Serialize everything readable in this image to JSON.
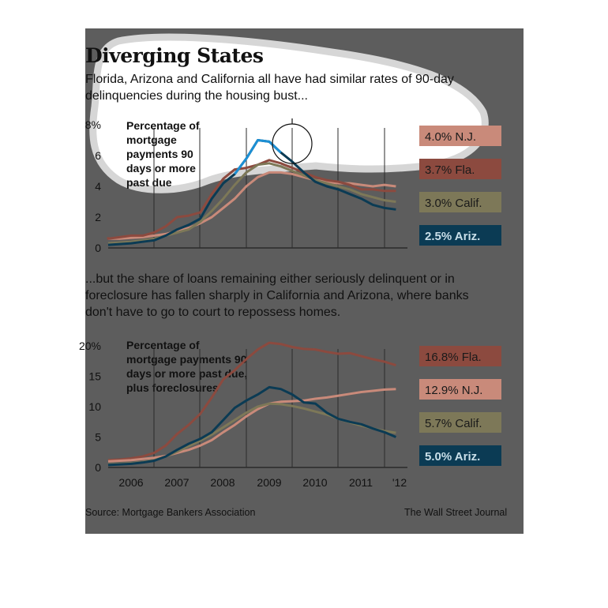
{
  "title": "Diverging States",
  "intro_top": "Florida, Arizona and California all have had similar rates of 90-day delinquencies during the housing bust...",
  "intro_bottom": "...but the share of loans remaining either seriously delinquent or in foreclosure has fallen sharply in California and Arizona, where banks don't have to go to court to repossess homes.",
  "source": "Source: Mortgage Bankers Association",
  "credit": "The Wall Street Journal",
  "colors": {
    "panel": "#5d5d5d",
    "highlight": "#ffffff",
    "axis": "#2b2b2b",
    "nj": "#c98a7a",
    "fla": "#8c4a3f",
    "calif": "#7d7858",
    "ariz": "#0b3b54",
    "ariz_peak": "#1c8fd4"
  },
  "chart_data": [
    {
      "type": "line",
      "label": "Percentage of mortgage payments 90 days or more past due",
      "ylim": [
        0,
        8
      ],
      "yticks": [
        "0",
        "2",
        "4",
        "6",
        "8%"
      ],
      "xlim": [
        2006,
        2012.25
      ],
      "grid": false,
      "legend_position": "right",
      "series": [
        {
          "name": "N.J.",
          "end_label": "4.0% N.J.",
          "color": "#c98a7a",
          "x": [
            2005.75,
            2006.0,
            2006.25,
            2006.5,
            2006.75,
            2007.0,
            2007.25,
            2007.5,
            2007.75,
            2008.0,
            2008.25,
            2008.5,
            2008.75,
            2009.0,
            2009.25,
            2009.5,
            2009.75,
            2010.0,
            2010.25,
            2010.5,
            2010.75,
            2011.0,
            2011.25,
            2011.5,
            2011.75,
            2012.0,
            2012.25
          ],
          "y": [
            0.6,
            0.6,
            0.6,
            0.65,
            0.7,
            0.8,
            0.9,
            1.1,
            1.3,
            1.6,
            2.0,
            2.6,
            3.2,
            4.0,
            4.6,
            4.9,
            4.9,
            4.8,
            4.6,
            4.4,
            4.3,
            4.2,
            4.2,
            4.1,
            4.0,
            4.1,
            4.0
          ]
        },
        {
          "name": "Fla.",
          "end_label": "3.7% Fla.",
          "color": "#8c4a3f",
          "x": [
            2005.75,
            2006.0,
            2006.25,
            2006.5,
            2006.75,
            2007.0,
            2007.25,
            2007.5,
            2007.75,
            2008.0,
            2008.25,
            2008.5,
            2008.75,
            2009.0,
            2009.25,
            2009.5,
            2009.75,
            2010.0,
            2010.25,
            2010.5,
            2010.75,
            2011.0,
            2011.25,
            2011.5,
            2011.75,
            2012.0,
            2012.25
          ],
          "y": [
            0.7,
            0.6,
            0.7,
            0.8,
            0.8,
            1.0,
            1.4,
            2.0,
            2.1,
            2.3,
            3.5,
            4.5,
            5.1,
            5.2,
            5.4,
            5.7,
            5.5,
            5.2,
            4.9,
            4.6,
            4.4,
            4.3,
            4.1,
            3.8,
            3.8,
            3.7,
            3.7
          ]
        },
        {
          "name": "Calif.",
          "end_label": "3.0% Calif.",
          "color": "#7d7858",
          "x": [
            2005.75,
            2006.0,
            2006.25,
            2006.5,
            2006.75,
            2007.0,
            2007.25,
            2007.5,
            2007.75,
            2008.0,
            2008.25,
            2008.5,
            2008.75,
            2009.0,
            2009.25,
            2009.5,
            2009.75,
            2010.0,
            2010.25,
            2010.5,
            2010.75,
            2011.0,
            2011.25,
            2011.5,
            2011.75,
            2012.0,
            2012.25
          ],
          "y": [
            0.3,
            0.3,
            0.35,
            0.4,
            0.5,
            0.6,
            0.8,
            1.0,
            1.2,
            1.7,
            2.4,
            3.2,
            4.1,
            4.9,
            5.4,
            5.5,
            5.3,
            5.0,
            4.7,
            4.4,
            4.2,
            4.0,
            3.8,
            3.5,
            3.3,
            3.1,
            3.0
          ]
        },
        {
          "name": "Ariz.",
          "end_label": "2.5% Ariz.",
          "color": "#0b3b54",
          "x": [
            2005.75,
            2006.0,
            2006.25,
            2006.5,
            2006.75,
            2007.0,
            2007.25,
            2007.5,
            2007.75,
            2008.0,
            2008.25,
            2008.5,
            2008.75,
            2009.0,
            2009.25,
            2009.5,
            2009.75,
            2010.0,
            2010.25,
            2010.5,
            2010.75,
            2011.0,
            2011.25,
            2011.5,
            2011.75,
            2012.0,
            2012.25
          ],
          "y": [
            0.2,
            0.2,
            0.25,
            0.3,
            0.4,
            0.5,
            0.8,
            1.2,
            1.5,
            1.9,
            3.2,
            4.2,
            4.8,
            5.8,
            7.0,
            6.9,
            6.2,
            5.6,
            4.9,
            4.3,
            4.0,
            3.8,
            3.5,
            3.2,
            2.8,
            2.6,
            2.5
          ]
        }
      ]
    },
    {
      "type": "line",
      "label": "Percentage of mortgage payments 90 days or more past due, plus foreclosures",
      "ylim": [
        0,
        20
      ],
      "yticks": [
        "0",
        "5",
        "10",
        "15",
        "20%"
      ],
      "xlim": [
        2006,
        2012.25
      ],
      "xticks": [
        "2006",
        "2007",
        "2008",
        "2009",
        "2010",
        "2011",
        "'12"
      ],
      "grid": false,
      "legend_position": "right",
      "series": [
        {
          "name": "Fla.",
          "end_label": "16.8% Fla.",
          "color": "#8c4a3f",
          "x": [
            2005.75,
            2006.0,
            2006.25,
            2006.5,
            2006.75,
            2007.0,
            2007.25,
            2007.5,
            2007.75,
            2008.0,
            2008.25,
            2008.5,
            2008.75,
            2009.0,
            2009.25,
            2009.5,
            2009.75,
            2010.0,
            2010.25,
            2010.5,
            2010.75,
            2011.0,
            2011.25,
            2011.5,
            2011.75,
            2012.0,
            2012.25
          ],
          "y": [
            1.2,
            1.2,
            1.3,
            1.5,
            1.8,
            2.4,
            3.6,
            5.5,
            7.0,
            8.8,
            11.5,
            14.5,
            16.0,
            17.8,
            19.4,
            20.5,
            20.3,
            19.8,
            19.5,
            19.4,
            19.0,
            18.7,
            18.8,
            18.3,
            17.8,
            17.4,
            16.8
          ]
        },
        {
          "name": "N.J.",
          "end_label": "12.9% N.J.",
          "color": "#c98a7a",
          "x": [
            2005.75,
            2006.0,
            2006.25,
            2006.5,
            2006.75,
            2007.0,
            2007.25,
            2007.5,
            2007.75,
            2008.0,
            2008.25,
            2008.5,
            2008.75,
            2009.0,
            2009.25,
            2009.5,
            2009.75,
            2010.0,
            2010.25,
            2010.5,
            2010.75,
            2011.0,
            2011.25,
            2011.5,
            2011.75,
            2012.0,
            2012.25
          ],
          "y": [
            1.0,
            1.0,
            1.1,
            1.2,
            1.4,
            1.6,
            1.9,
            2.4,
            2.9,
            3.6,
            4.5,
            5.8,
            7.0,
            8.4,
            9.6,
            10.5,
            10.8,
            10.9,
            11.0,
            11.3,
            11.5,
            11.8,
            12.1,
            12.4,
            12.6,
            12.8,
            12.9
          ]
        },
        {
          "name": "Calif.",
          "end_label": "5.7% Calif.",
          "color": "#7d7858",
          "x": [
            2005.75,
            2006.0,
            2006.25,
            2006.5,
            2006.75,
            2007.0,
            2007.25,
            2007.5,
            2007.75,
            2008.0,
            2008.25,
            2008.5,
            2008.75,
            2009.0,
            2009.25,
            2009.5,
            2009.75,
            2010.0,
            2010.25,
            2010.5,
            2010.75,
            2011.0,
            2011.25,
            2011.5,
            2011.75,
            2012.0,
            2012.25
          ],
          "y": [
            0.5,
            0.5,
            0.6,
            0.7,
            0.9,
            1.2,
            1.8,
            2.6,
            3.5,
            4.4,
            5.4,
            6.6,
            7.8,
            9.0,
            10.0,
            10.5,
            10.4,
            10.1,
            9.7,
            9.2,
            8.7,
            8.0,
            7.4,
            6.9,
            6.4,
            6.0,
            5.7
          ]
        },
        {
          "name": "Ariz.",
          "end_label": "5.0% Ariz.",
          "color": "#0b3b54",
          "x": [
            2005.75,
            2006.0,
            2006.25,
            2006.5,
            2006.75,
            2007.0,
            2007.25,
            2007.5,
            2007.75,
            2008.0,
            2008.25,
            2008.5,
            2008.75,
            2009.0,
            2009.25,
            2009.5,
            2009.75,
            2010.0,
            2010.25,
            2010.5,
            2010.75,
            2011.0,
            2011.25,
            2011.5,
            2011.75,
            2012.0,
            2012.25
          ],
          "y": [
            0.4,
            0.4,
            0.5,
            0.6,
            0.8,
            1.1,
            1.8,
            2.9,
            3.9,
            4.7,
            5.8,
            7.8,
            9.8,
            11.0,
            12.0,
            13.2,
            12.9,
            12.0,
            10.7,
            10.5,
            9.0,
            8.0,
            7.5,
            7.1,
            6.4,
            5.8,
            5.0
          ]
        }
      ]
    }
  ]
}
